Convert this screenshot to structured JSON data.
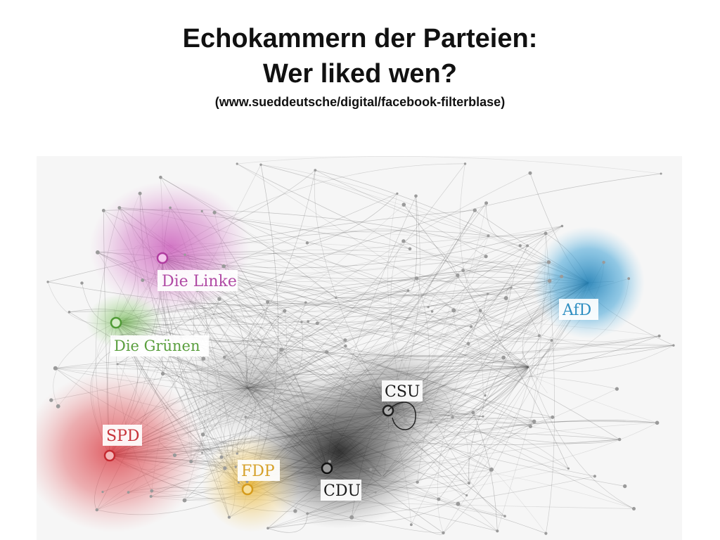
{
  "slide": {
    "title_line1": "Echokammern der Parteien:",
    "title_line2": "Wer liked wen?",
    "source": "(www.sueddeutsche/digital/facebook-filterblase)"
  },
  "network": {
    "parties": [
      {
        "id": "linke",
        "label": "Die Linke",
        "color": "#c64bb4"
      },
      {
        "id": "gruene",
        "label": "Die Grünen",
        "color": "#6ab44a"
      },
      {
        "id": "spd",
        "label": "SPD",
        "color": "#d9343c"
      },
      {
        "id": "fdp",
        "label": "FDP",
        "color": "#e8b331"
      },
      {
        "id": "cdu",
        "label": "CDU",
        "color": "#1a1a1a"
      },
      {
        "id": "csu",
        "label": "CSU",
        "color": "#2b2b2b"
      },
      {
        "id": "afd",
        "label": "AfD",
        "color": "#2f95c8"
      }
    ]
  }
}
